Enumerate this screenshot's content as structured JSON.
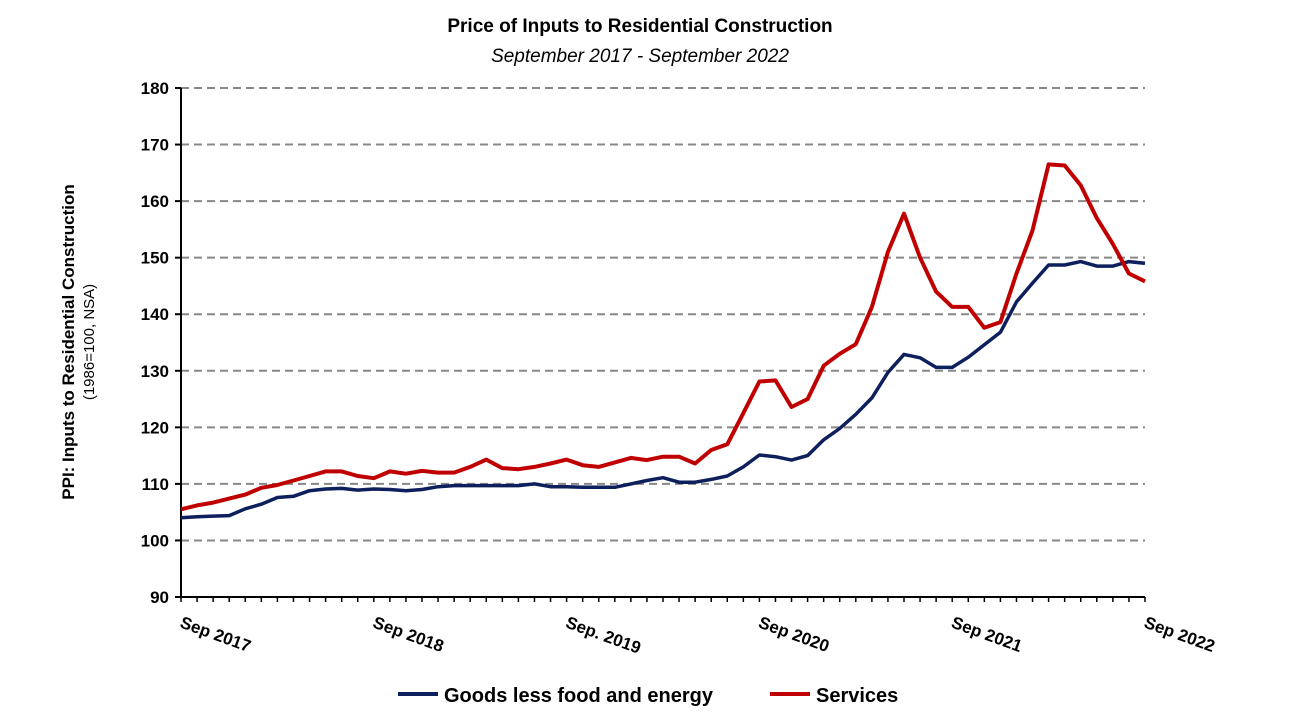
{
  "chart_data": {
    "type": "line",
    "title": "Price of Inputs to Residential Construction",
    "subtitle": "September 2017 - September 2022",
    "ylabel": "PPI: Inputs to Residential Construction",
    "ylabel_sub": "(1986=100, NSA)",
    "xlabel": "",
    "ylim": [
      90,
      180
    ],
    "yticks": [
      90,
      100,
      110,
      120,
      130,
      140,
      150,
      160,
      170,
      180
    ],
    "x_start": "Sep 2017",
    "x_end": "Sep 2022",
    "x_frequency": "monthly",
    "xtick_labels": [
      "Sep 2017",
      "Sep 2018",
      "Sep. 2019",
      "Sep 2020",
      "Sep 2021",
      "Sep 2022"
    ],
    "grid": "horizontal dashed",
    "legend_position": "bottom",
    "series": [
      {
        "name": "Goods less food and energy",
        "color": "#0d1f5c",
        "values": [
          104.0,
          104.2,
          104.3,
          104.4,
          105.6,
          106.4,
          107.6,
          107.8,
          108.8,
          109.1,
          109.2,
          108.9,
          109.1,
          109.0,
          108.8,
          109.0,
          109.5,
          109.7,
          109.7,
          109.7,
          109.7,
          109.7,
          110.0,
          109.5,
          109.5,
          109.4,
          109.4,
          109.4,
          110.0,
          110.6,
          111.1,
          110.3,
          110.3,
          110.8,
          111.4,
          113.0,
          115.1,
          114.8,
          114.2,
          115.0,
          117.8,
          119.8,
          122.3,
          125.2,
          129.7,
          132.9,
          132.3,
          130.6,
          130.6,
          132.4,
          134.6,
          136.8,
          142.2,
          145.5,
          148.7,
          148.7,
          149.3,
          148.5,
          148.5,
          149.3,
          149.0
        ]
      },
      {
        "name": "Services",
        "color": "#c00000",
        "values": [
          105.5,
          106.2,
          106.7,
          107.4,
          108.1,
          109.3,
          109.8,
          110.6,
          111.4,
          112.2,
          112.2,
          111.4,
          111.0,
          112.2,
          111.8,
          112.3,
          112.0,
          112.0,
          113.0,
          114.3,
          112.8,
          112.6,
          113.0,
          113.6,
          114.3,
          113.3,
          113.0,
          113.8,
          114.6,
          114.2,
          114.8,
          114.8,
          113.6,
          116.0,
          117.0,
          122.5,
          128.1,
          128.3,
          123.6,
          125.0,
          130.9,
          133.0,
          134.7,
          141.3,
          151.0,
          157.8,
          150.0,
          144.0,
          141.3,
          141.3,
          137.6,
          138.6,
          147.2,
          154.8,
          166.5,
          166.3,
          162.8,
          157.0,
          152.4,
          147.2,
          145.8
        ]
      }
    ]
  }
}
